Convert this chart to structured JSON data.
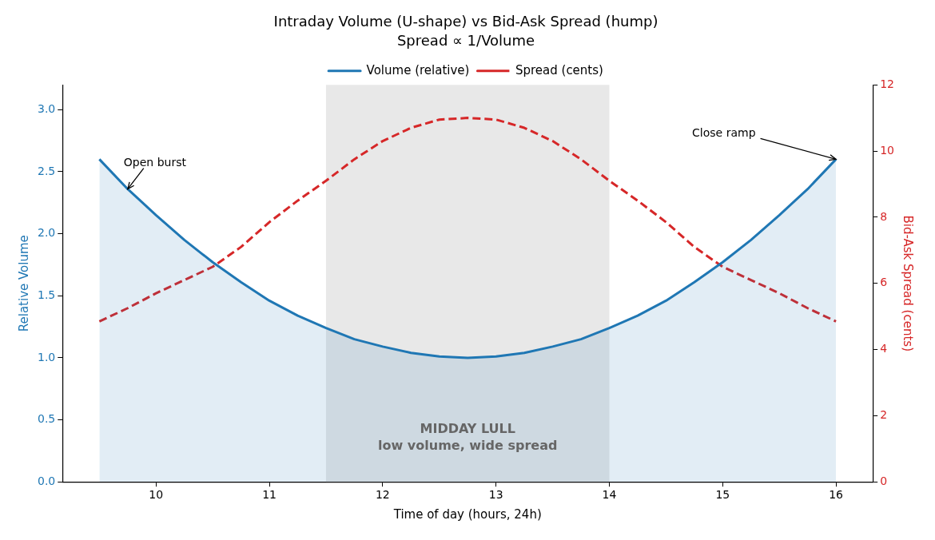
{
  "chart_data": {
    "type": "line",
    "title": "Intraday Volume (U-shape) vs Bid-Ask Spread (hump)",
    "subtitle": "Spread ∝ 1/Volume",
    "xlabel": "Time of day (hours, 24h)",
    "ylabel": "Relative Volume",
    "y2label": "Bid-Ask Spread (cents)",
    "x": [
      9.5,
      9.75,
      10,
      10.25,
      10.5,
      10.75,
      11,
      11.25,
      11.5,
      11.75,
      12,
      12.25,
      12.5,
      12.75,
      13,
      13.25,
      13.5,
      13.75,
      14,
      14.25,
      14.5,
      14.75,
      15,
      15.25,
      15.5,
      15.75,
      16
    ],
    "series": [
      {
        "name": "Volume (relative)",
        "type": "area",
        "color": "#1f77b4",
        "line_style": "solid",
        "values": [
          2.6,
          2.36,
          2.15,
          1.95,
          1.77,
          1.61,
          1.46,
          1.34,
          1.24,
          1.15,
          1.09,
          1.04,
          1.01,
          1.0,
          1.01,
          1.04,
          1.09,
          1.15,
          1.24,
          1.34,
          1.46,
          1.61,
          1.77,
          1.95,
          2.15,
          2.36,
          2.6
        ]
      },
      {
        "name": "Spread (cents)",
        "type": "line",
        "axis": "y2",
        "color": "#d62728",
        "line_style": "dashed",
        "values": [
          4.85,
          5.25,
          5.7,
          6.1,
          6.5,
          7.1,
          7.85,
          8.5,
          9.1,
          9.75,
          10.3,
          10.7,
          10.95,
          11.0,
          10.95,
          10.7,
          10.3,
          9.75,
          9.1,
          8.5,
          7.85,
          7.1,
          6.5,
          6.1,
          5.7,
          5.25,
          4.85
        ]
      }
    ],
    "xlim": [
      9.175,
      16.325
    ],
    "xticks": [
      10,
      11,
      12,
      13,
      14,
      15,
      16
    ],
    "ylim": [
      0,
      3.2
    ],
    "yticks": [
      {
        "value": 0,
        "label": "0.0"
      },
      {
        "value": 0.5,
        "label": "0.5"
      },
      {
        "value": 1,
        "label": "1.0"
      },
      {
        "value": 1.5,
        "label": "1.5"
      },
      {
        "value": 2,
        "label": "2.0"
      },
      {
        "value": 2.5,
        "label": "2.5"
      },
      {
        "value": 3,
        "label": "3.0"
      }
    ],
    "y2lim": [
      0,
      12
    ],
    "y2ticks": [
      0,
      2,
      4,
      6,
      8,
      10,
      12
    ],
    "bands": [
      {
        "axis": "x",
        "from": 11.5,
        "to": 14,
        "label": "MIDDAY LULL\nlow volume, wide spread",
        "color": "#bdbdbd"
      }
    ],
    "annotations": [
      {
        "text": "Open burst",
        "x": 9.75,
        "y": 2.36
      },
      {
        "text": "Close ramp",
        "x": 16,
        "y": 2.6
      }
    ],
    "marker": "none",
    "grid": false,
    "legend": "top"
  }
}
